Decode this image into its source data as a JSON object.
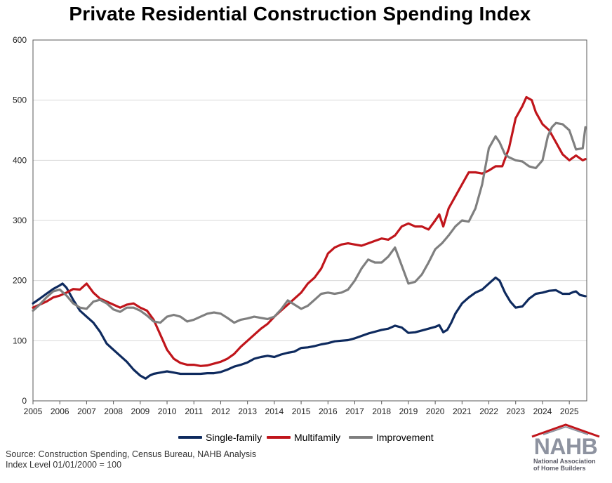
{
  "title": "Private Residential Construction Spending Index",
  "source_lines": [
    "Source: Construction Spending, Census Bureau, NAHB Analysis",
    "Index Level 01/01/2000 = 100"
  ],
  "logo": {
    "text": "NAHB",
    "subtitle_lines": [
      "National Association",
      "of Home Builders"
    ]
  },
  "colors": {
    "single_family": "#0e2a5e",
    "multifamily": "#c0151b",
    "improvement": "#7f7f7f",
    "grid": "#d9d9d9",
    "logo_roof": "#c0151b"
  },
  "chart_data": {
    "type": "line",
    "title": "Private Residential Construction Spending Index",
    "xlim": [
      2005.0,
      2025.65
    ],
    "ylim": [
      0,
      600
    ],
    "x_ticks": [
      "2005",
      "2006",
      "2007",
      "2008",
      "2009",
      "2010",
      "2011",
      "2012",
      "2013",
      "2014",
      "2015",
      "2016",
      "2017",
      "2018",
      "2019",
      "2020",
      "2021",
      "2022",
      "2023",
      "2024",
      "2025"
    ],
    "y_ticks": [
      "0",
      "100",
      "200",
      "300",
      "400",
      "500",
      "600"
    ],
    "grid": "horizontal",
    "legend_position": "bottom",
    "series": [
      {
        "name": "Single-family",
        "color": "#0e2a5e",
        "x": [
          2005.0,
          2005.25,
          2005.5,
          2005.75,
          2006.0,
          2006.1,
          2006.25,
          2006.5,
          2006.75,
          2007.0,
          2007.25,
          2007.5,
          2007.75,
          2008.0,
          2008.25,
          2008.5,
          2008.75,
          2009.0,
          2009.2,
          2009.35,
          2009.5,
          2009.75,
          2010.0,
          2010.25,
          2010.5,
          2010.75,
          2011.0,
          2011.25,
          2011.5,
          2011.75,
          2012.0,
          2012.25,
          2012.5,
          2012.75,
          2013.0,
          2013.25,
          2013.5,
          2013.75,
          2014.0,
          2014.25,
          2014.5,
          2014.75,
          2015.0,
          2015.25,
          2015.5,
          2015.75,
          2016.0,
          2016.25,
          2016.5,
          2016.75,
          2017.0,
          2017.25,
          2017.5,
          2017.75,
          2018.0,
          2018.25,
          2018.5,
          2018.75,
          2019.0,
          2019.25,
          2019.5,
          2019.75,
          2020.0,
          2020.15,
          2020.3,
          2020.45,
          2020.6,
          2020.75,
          2021.0,
          2021.25,
          2021.5,
          2021.75,
          2022.0,
          2022.25,
          2022.4,
          2022.6,
          2022.8,
          2023.0,
          2023.25,
          2023.5,
          2023.75,
          2024.0,
          2024.25,
          2024.5,
          2024.75,
          2025.0,
          2025.15,
          2025.25,
          2025.4,
          2025.6
        ],
        "y": [
          162,
          170,
          178,
          186,
          192,
          195,
          188,
          168,
          150,
          140,
          130,
          115,
          95,
          85,
          75,
          65,
          52,
          42,
          37,
          42,
          45,
          47,
          49,
          47,
          45,
          45,
          45,
          45,
          46,
          46,
          48,
          52,
          57,
          60,
          64,
          70,
          73,
          75,
          73,
          77,
          80,
          82,
          88,
          89,
          91,
          94,
          96,
          99,
          100,
          101,
          104,
          108,
          112,
          115,
          118,
          120,
          125,
          122,
          113,
          114,
          117,
          120,
          123,
          126,
          114,
          118,
          130,
          145,
          162,
          172,
          180,
          185,
          195,
          205,
          200,
          180,
          165,
          155,
          157,
          170,
          178,
          180,
          183,
          184,
          178,
          178,
          181,
          182,
          176,
          174
        ]
      },
      {
        "name": "Multifamily",
        "color": "#c0151b",
        "x": [
          2005.0,
          2005.25,
          2005.5,
          2005.75,
          2006.0,
          2006.25,
          2006.5,
          2006.75,
          2007.0,
          2007.25,
          2007.5,
          2007.75,
          2008.0,
          2008.25,
          2008.5,
          2008.75,
          2009.0,
          2009.25,
          2009.5,
          2009.75,
          2010.0,
          2010.25,
          2010.5,
          2010.75,
          2011.0,
          2011.25,
          2011.5,
          2011.75,
          2012.0,
          2012.25,
          2012.5,
          2012.75,
          2013.0,
          2013.25,
          2013.5,
          2013.75,
          2014.0,
          2014.25,
          2014.5,
          2014.75,
          2015.0,
          2015.25,
          2015.5,
          2015.75,
          2016.0,
          2016.25,
          2016.5,
          2016.75,
          2017.0,
          2017.25,
          2017.5,
          2017.75,
          2018.0,
          2018.25,
          2018.5,
          2018.75,
          2019.0,
          2019.25,
          2019.5,
          2019.75,
          2020.0,
          2020.15,
          2020.3,
          2020.5,
          2020.75,
          2021.0,
          2021.25,
          2021.5,
          2021.75,
          2022.0,
          2022.25,
          2022.5,
          2022.75,
          2023.0,
          2023.25,
          2023.4,
          2023.6,
          2023.75,
          2024.0,
          2024.25,
          2024.5,
          2024.75,
          2025.0,
          2025.25,
          2025.5,
          2025.6
        ],
        "y": [
          155,
          160,
          165,
          172,
          175,
          180,
          186,
          185,
          195,
          180,
          170,
          165,
          160,
          155,
          160,
          162,
          155,
          150,
          135,
          110,
          85,
          70,
          63,
          60,
          60,
          58,
          59,
          62,
          65,
          70,
          78,
          90,
          100,
          110,
          120,
          128,
          140,
          150,
          160,
          170,
          180,
          195,
          205,
          220,
          245,
          255,
          260,
          262,
          260,
          258,
          262,
          266,
          270,
          268,
          275,
          290,
          295,
          290,
          290,
          285,
          300,
          310,
          290,
          320,
          340,
          360,
          380,
          380,
          378,
          383,
          390,
          390,
          420,
          470,
          490,
          505,
          500,
          480,
          460,
          450,
          430,
          410,
          400,
          408,
          400,
          402
        ]
      },
      {
        "name": "Improvement",
        "color": "#7f7f7f",
        "x": [
          2005.0,
          2005.25,
          2005.5,
          2005.75,
          2006.0,
          2006.25,
          2006.5,
          2006.75,
          2007.0,
          2007.25,
          2007.5,
          2007.75,
          2008.0,
          2008.25,
          2008.5,
          2008.75,
          2009.0,
          2009.25,
          2009.5,
          2009.75,
          2010.0,
          2010.25,
          2010.5,
          2010.75,
          2011.0,
          2011.25,
          2011.5,
          2011.75,
          2012.0,
          2012.25,
          2012.5,
          2012.75,
          2013.0,
          2013.25,
          2013.5,
          2013.75,
          2014.0,
          2014.25,
          2014.5,
          2014.75,
          2015.0,
          2015.25,
          2015.5,
          2015.75,
          2016.0,
          2016.25,
          2016.5,
          2016.75,
          2017.0,
          2017.25,
          2017.5,
          2017.75,
          2018.0,
          2018.25,
          2018.5,
          2018.75,
          2019.0,
          2019.25,
          2019.5,
          2019.75,
          2020.0,
          2020.25,
          2020.5,
          2020.75,
          2021.0,
          2021.25,
          2021.5,
          2021.75,
          2022.0,
          2022.25,
          2022.4,
          2022.6,
          2022.75,
          2023.0,
          2023.25,
          2023.5,
          2023.75,
          2024.0,
          2024.2,
          2024.35,
          2024.5,
          2024.75,
          2025.0,
          2025.25,
          2025.5,
          2025.6
        ],
        "y": [
          150,
          160,
          172,
          182,
          185,
          175,
          162,
          155,
          153,
          165,
          168,
          162,
          152,
          148,
          155,
          155,
          150,
          142,
          132,
          130,
          140,
          143,
          140,
          132,
          135,
          140,
          145,
          147,
          145,
          138,
          130,
          135,
          137,
          140,
          138,
          136,
          140,
          152,
          167,
          160,
          153,
          158,
          168,
          178,
          180,
          178,
          180,
          185,
          200,
          220,
          235,
          230,
          230,
          240,
          255,
          225,
          195,
          198,
          210,
          230,
          252,
          262,
          275,
          290,
          300,
          298,
          320,
          360,
          420,
          440,
          430,
          410,
          405,
          400,
          398,
          390,
          387,
          400,
          440,
          455,
          462,
          460,
          450,
          418,
          420,
          455
        ]
      }
    ]
  }
}
